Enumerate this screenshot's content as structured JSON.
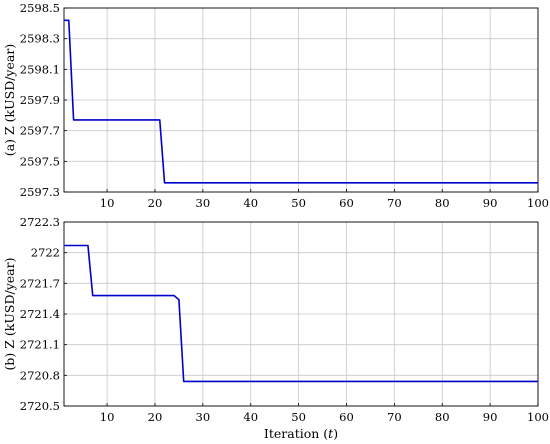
{
  "chart_data": [
    {
      "type": "line",
      "ylabel": "(a) Z (kUSD/year)",
      "xlabel": "",
      "xlim": [
        1,
        100
      ],
      "ylim": [
        2597.3,
        2598.5
      ],
      "xticks": [
        10,
        20,
        30,
        40,
        50,
        60,
        70,
        80,
        90,
        100
      ],
      "yticks": [
        "2597.3",
        "2597.5",
        "2597.7",
        "2597.9",
        "2598.1",
        "2598.3",
        "2598.5"
      ],
      "grid": true,
      "color": "#0000cc",
      "series": [
        {
          "x": [
            1,
            2,
            3,
            21,
            22,
            100
          ],
          "y": [
            2598.42,
            2598.42,
            2597.77,
            2597.77,
            2597.36,
            2597.36
          ]
        }
      ]
    },
    {
      "type": "line",
      "ylabel": "(b) Z (kUSD/year)",
      "xlabel_prefix": "Iteration (",
      "xlabel_var": "t",
      "xlabel_suffix": ")",
      "xlim": [
        1,
        100
      ],
      "ylim": [
        2720.5,
        2722.3
      ],
      "xticks": [
        10,
        20,
        30,
        40,
        50,
        60,
        70,
        80,
        90,
        100
      ],
      "yticks": [
        "2720.5",
        "2720.8",
        "2721.1",
        "2721.4",
        "2721.7",
        "2722",
        "2722.3"
      ],
      "grid": true,
      "color": "#0000cc",
      "series": [
        {
          "x": [
            1,
            6,
            7,
            24,
            25,
            26,
            100
          ],
          "y": [
            2722.07,
            2722.07,
            2721.58,
            2721.58,
            2721.54,
            2720.74,
            2720.74
          ]
        }
      ]
    }
  ]
}
